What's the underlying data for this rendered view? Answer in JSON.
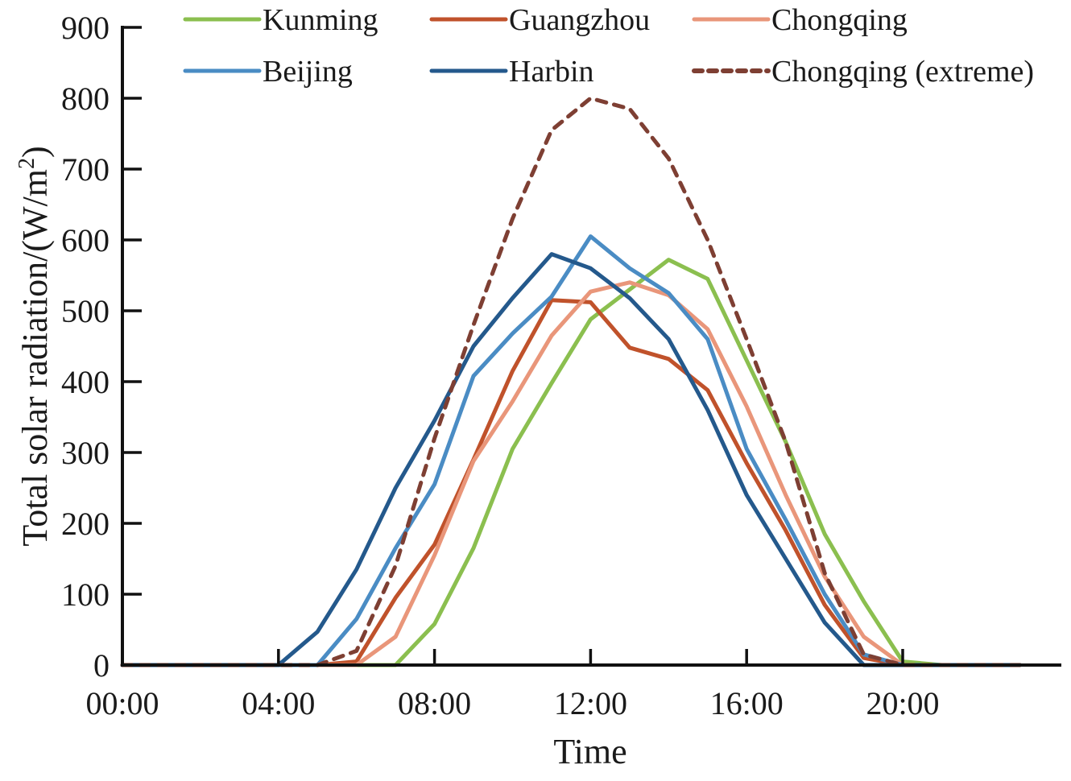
{
  "chart_data": {
    "type": "line",
    "title": "",
    "xlabel": "Time",
    "ylabel": "Total solar radiation/(W/m²)",
    "ylabel_main": "Total solar radiation/(W/m",
    "ylabel_sup": "2",
    "ylabel_tail": ")",
    "xlim": [
      0,
      23
    ],
    "ylim": [
      0,
      900
    ],
    "grid": false,
    "legend_position": "top",
    "x_ticks": [
      {
        "value": 0,
        "label": "00:00"
      },
      {
        "value": 4,
        "label": "04:00"
      },
      {
        "value": 8,
        "label": "08:00"
      },
      {
        "value": 12,
        "label": "12:00"
      },
      {
        "value": 16,
        "label": "16:00"
      },
      {
        "value": 20,
        "label": "20:00"
      }
    ],
    "y_ticks": [
      0,
      100,
      200,
      300,
      400,
      500,
      600,
      700,
      800,
      900
    ],
    "x": [
      0,
      1,
      2,
      3,
      4,
      5,
      6,
      7,
      8,
      9,
      10,
      11,
      12,
      13,
      14,
      15,
      16,
      17,
      18,
      19,
      20,
      21,
      22,
      23
    ],
    "series": [
      {
        "name": "Kunming",
        "color": "#8bbf4f",
        "dashed": false,
        "values": [
          0,
          0,
          0,
          0,
          0,
          0,
          0,
          0,
          58,
          165,
          305,
          398,
          488,
          530,
          572,
          545,
          430,
          315,
          185,
          90,
          5,
          0,
          0,
          0
        ]
      },
      {
        "name": "Guangzhou",
        "color": "#c0522b",
        "dashed": false,
        "values": [
          0,
          0,
          0,
          0,
          0,
          0,
          5,
          95,
          170,
          290,
          415,
          515,
          512,
          448,
          432,
          388,
          285,
          190,
          85,
          10,
          0,
          0,
          0,
          0
        ]
      },
      {
        "name": "Chongqing",
        "color": "#e9967a",
        "dashed": false,
        "values": [
          0,
          0,
          0,
          0,
          0,
          0,
          0,
          40,
          155,
          288,
          372,
          465,
          527,
          540,
          522,
          474,
          365,
          240,
          125,
          40,
          0,
          0,
          0,
          0
        ]
      },
      {
        "name": "Beijing",
        "color": "#4a8cc4",
        "dashed": false,
        "values": [
          0,
          0,
          0,
          0,
          0,
          0,
          65,
          165,
          255,
          408,
          468,
          520,
          605,
          560,
          525,
          460,
          305,
          205,
          100,
          15,
          0,
          0,
          0,
          0
        ]
      },
      {
        "name": "Harbin",
        "color": "#24598c",
        "dashed": false,
        "values": [
          0,
          0,
          0,
          0,
          0,
          47,
          135,
          250,
          345,
          450,
          518,
          580,
          560,
          518,
          460,
          360,
          240,
          150,
          60,
          0,
          0,
          0,
          0,
          0
        ]
      },
      {
        "name": "Chongqing (extreme)",
        "color": "#7e3f33",
        "dashed": true,
        "values": [
          0,
          0,
          0,
          0,
          0,
          0,
          20,
          140,
          320,
          480,
          630,
          755,
          800,
          785,
          715,
          600,
          460,
          315,
          130,
          15,
          0,
          0,
          0,
          0
        ]
      }
    ]
  }
}
